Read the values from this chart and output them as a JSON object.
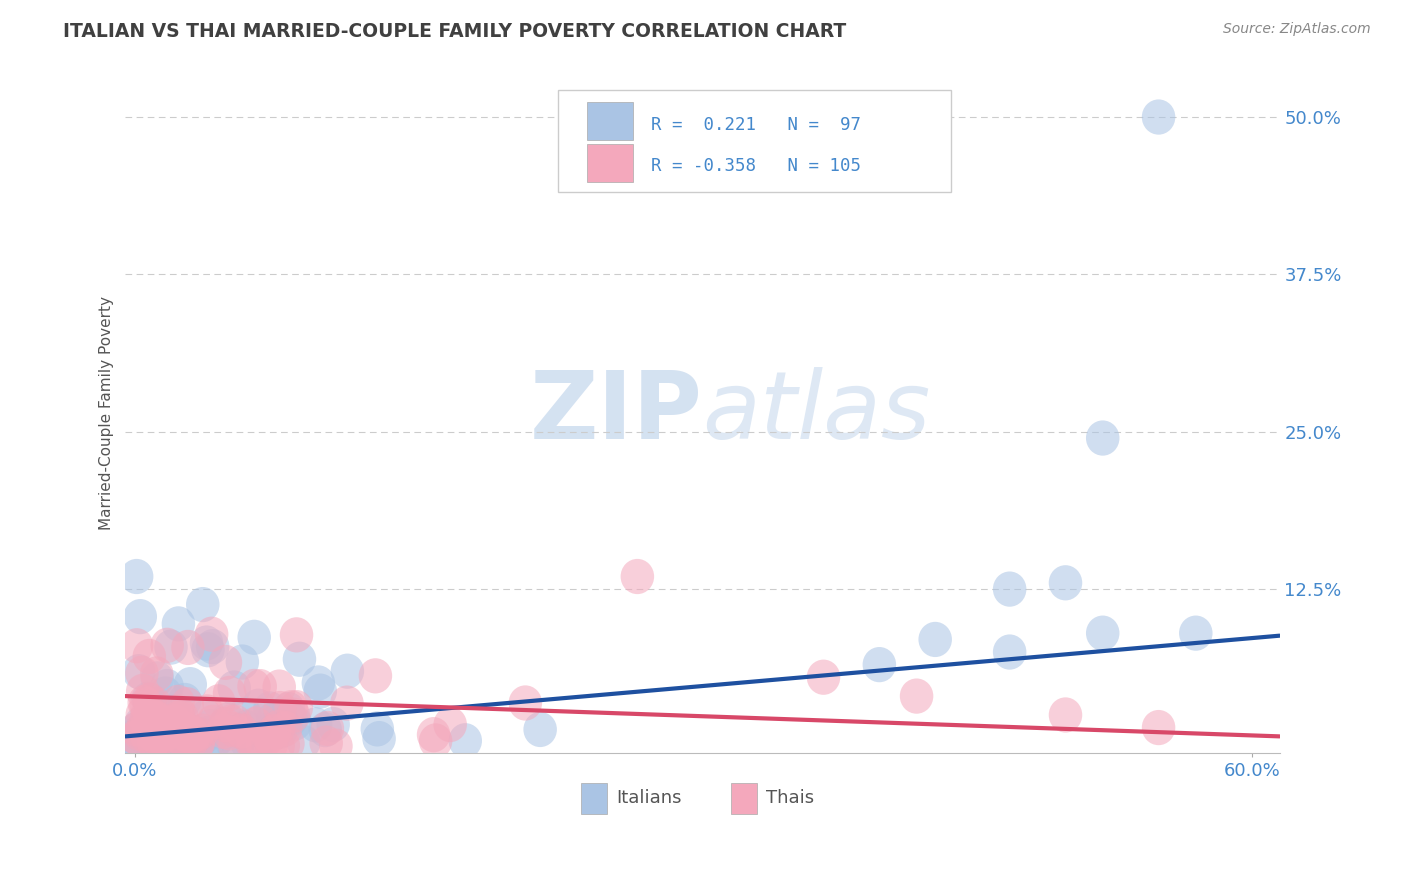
{
  "title": "ITALIAN VS THAI MARRIED-COUPLE FAMILY POVERTY CORRELATION CHART",
  "source": "Source: ZipAtlas.com",
  "ylabel": "Married-Couple Family Poverty",
  "italian_R": 0.221,
  "italian_N": 97,
  "thai_R": -0.358,
  "thai_N": 105,
  "xlim": [
    -0.005,
    0.615
  ],
  "ylim": [
    -0.005,
    0.535
  ],
  "xticks": [
    0.0,
    0.6
  ],
  "xticklabels": [
    "0.0%",
    "60.0%"
  ],
  "ytick_positions": [
    0.125,
    0.25,
    0.375,
    0.5
  ],
  "ytick_labels": [
    "12.5%",
    "25.0%",
    "37.5%",
    "50.0%"
  ],
  "italian_color": "#aac4e4",
  "thai_color": "#f4a8bc",
  "italian_line_color": "#1e50a0",
  "thai_line_color": "#d84868",
  "background_color": "#ffffff",
  "watermark_color": "#d0dff0",
  "grid_color": "#cccccc",
  "title_color": "#404040",
  "axis_label_color": "#4488cc",
  "source_color": "#888888",
  "legend_box_color": "#e8e8e8",
  "bottom_legend_color": "#555555"
}
